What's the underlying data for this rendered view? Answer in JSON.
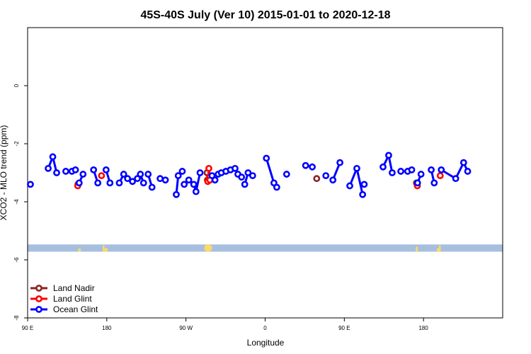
{
  "chart_data": {
    "type": "line",
    "title": "45S-40S July (Ver 10)   2015-01-01 to 2020-12-18",
    "xlabel": "Longitude",
    "ylabel": "XCO2 - MLO trend (ppm)",
    "xlim": [
      -90,
      180
    ],
    "ylim": [
      -8.0,
      2.0
    ],
    "x_ticks": [
      {
        "value": -90,
        "label": "90 E"
      },
      {
        "value": -45,
        "label": "180"
      },
      {
        "value": 0,
        "label": "90 W"
      },
      {
        "value": 45,
        "label": "0"
      },
      {
        "value": 90,
        "label": "90 E"
      },
      {
        "value": 135,
        "label": "180"
      }
    ],
    "y_ticks": [
      {
        "value": 0,
        "label": "0"
      },
      {
        "value": -2,
        "label": "-2"
      },
      {
        "value": -4,
        "label": "-4"
      },
      {
        "value": -6,
        "label": "-6"
      },
      {
        "value": -8,
        "label": "-8"
      }
    ],
    "grid": false,
    "legend_position": "bottom-left",
    "land_strip": {
      "y_range": [
        -5.72,
        -5.47
      ],
      "ocean_color": "#a7bfdf",
      "land_color": "#ffd966"
    },
    "series": [
      {
        "name": "Land Nadir",
        "color": "#8b2323",
        "segments": [
          [
            [
              -61.4,
              -3.4
            ]
          ],
          [
            [
              74.3,
              -3.2
            ]
          ],
          [
            [
              12.0,
              -3.0
            ],
            [
              12.2,
              -3.25
            ]
          ],
          [
            [
              131.0,
              -3.35
            ]
          ]
        ]
      },
      {
        "name": "Land Glint",
        "color": "#ff0000",
        "segments": [
          [
            [
              -61.5,
              -3.45
            ]
          ],
          [
            [
              -48.0,
              -3.1
            ]
          ],
          [
            [
              12.4,
              -3.3
            ],
            [
              13.0,
              -2.85
            ],
            [
              13.5,
              -3.15
            ],
            [
              13.6,
              -3.25
            ]
          ],
          [
            [
              131.5,
              -3.45
            ]
          ],
          [
            [
              144.5,
              -3.1
            ]
          ]
        ]
      },
      {
        "name": "Ocean Glint",
        "color": "#0000ff",
        "segments": [
          [
            [
              -88.4,
              -3.4
            ]
          ],
          [
            [
              -78.3,
              -2.85
            ],
            [
              -75.7,
              -2.45
            ],
            [
              -73.5,
              -3.0
            ]
          ],
          [
            [
              -68.3,
              -2.95
            ]
          ],
          [
            [
              -64.8,
              -2.95
            ],
            [
              -62.8,
              -2.9
            ]
          ],
          [
            [
              -60.7,
              -3.35
            ],
            [
              -58.5,
              -3.05
            ]
          ],
          [
            [
              -52.5,
              -2.9
            ],
            [
              -50.1,
              -3.35
            ]
          ],
          [
            [
              -45.4,
              -2.9
            ],
            [
              -43.2,
              -3.35
            ]
          ],
          [
            [
              -37.9,
              -3.35
            ],
            [
              -35.4,
              -3.05
            ],
            [
              -33.2,
              -3.2
            ]
          ],
          [
            [
              -30.4,
              -3.3
            ],
            [
              -27.6,
              -3.2
            ],
            [
              -25.9,
              -3.05
            ],
            [
              -24.1,
              -3.35
            ]
          ],
          [
            [
              -21.5,
              -3.05
            ],
            [
              -19.3,
              -3.5
            ]
          ],
          [
            [
              -14.7,
              -3.2
            ],
            [
              -11.7,
              -3.25
            ]
          ],
          [
            [
              -5.5,
              -3.75
            ],
            [
              -4.4,
              -3.1
            ],
            [
              -2.1,
              -2.95
            ]
          ],
          [
            [
              -1.0,
              -3.4
            ],
            [
              1.6,
              -3.25
            ]
          ],
          [
            [
              4.4,
              -3.4
            ],
            [
              5.7,
              -3.65
            ],
            [
              8.0,
              -3.0
            ]
          ],
          [
            [
              14.8,
              -3.1
            ],
            [
              16.5,
              -3.25
            ],
            [
              18.3,
              -3.05
            ]
          ],
          [
            [
              20.1,
              -3.0
            ],
            [
              22.7,
              -2.95
            ],
            [
              25.3,
              -2.9
            ]
          ],
          [
            [
              27.9,
              -2.85
            ],
            [
              29.5,
              -3.05
            ],
            [
              31.6,
              -3.15
            ]
          ],
          [
            [
              33.4,
              -3.4
            ],
            [
              35.3,
              -3.0
            ]
          ],
          [
            [
              37.9,
              -3.1
            ]
          ],
          [
            [
              45.7,
              -2.5
            ],
            [
              50.0,
              -3.35
            ],
            [
              51.6,
              -3.5
            ]
          ],
          [
            [
              57.2,
              -3.05
            ]
          ],
          [
            [
              68.0,
              -2.75
            ],
            [
              71.8,
              -2.8
            ]
          ],
          [
            [
              79.5,
              -3.1
            ]
          ],
          [
            [
              83.5,
              -3.25
            ],
            [
              87.5,
              -2.65
            ]
          ],
          [
            [
              93.1,
              -3.45
            ],
            [
              97.1,
              -2.85
            ],
            [
              100.4,
              -3.75
            ]
          ],
          [
            [
              101.3,
              -3.4
            ]
          ],
          [
            [
              112.0,
              -2.8
            ],
            [
              115.2,
              -2.4
            ],
            [
              117.2,
              -3.0
            ]
          ],
          [
            [
              122.1,
              -2.95
            ]
          ],
          [
            [
              126.0,
              -2.95
            ],
            [
              128.3,
              -2.9
            ]
          ],
          [
            [
              131.6,
              -3.35
            ],
            [
              133.6,
              -3.05
            ]
          ],
          [
            [
              139.4,
              -2.9
            ],
            [
              141.1,
              -3.35
            ]
          ],
          [
            [
              145.1,
              -2.9
            ],
            [
              153.3,
              -3.2
            ],
            [
              157.8,
              -2.65
            ],
            [
              160.1,
              -2.95
            ]
          ]
        ]
      }
    ]
  }
}
